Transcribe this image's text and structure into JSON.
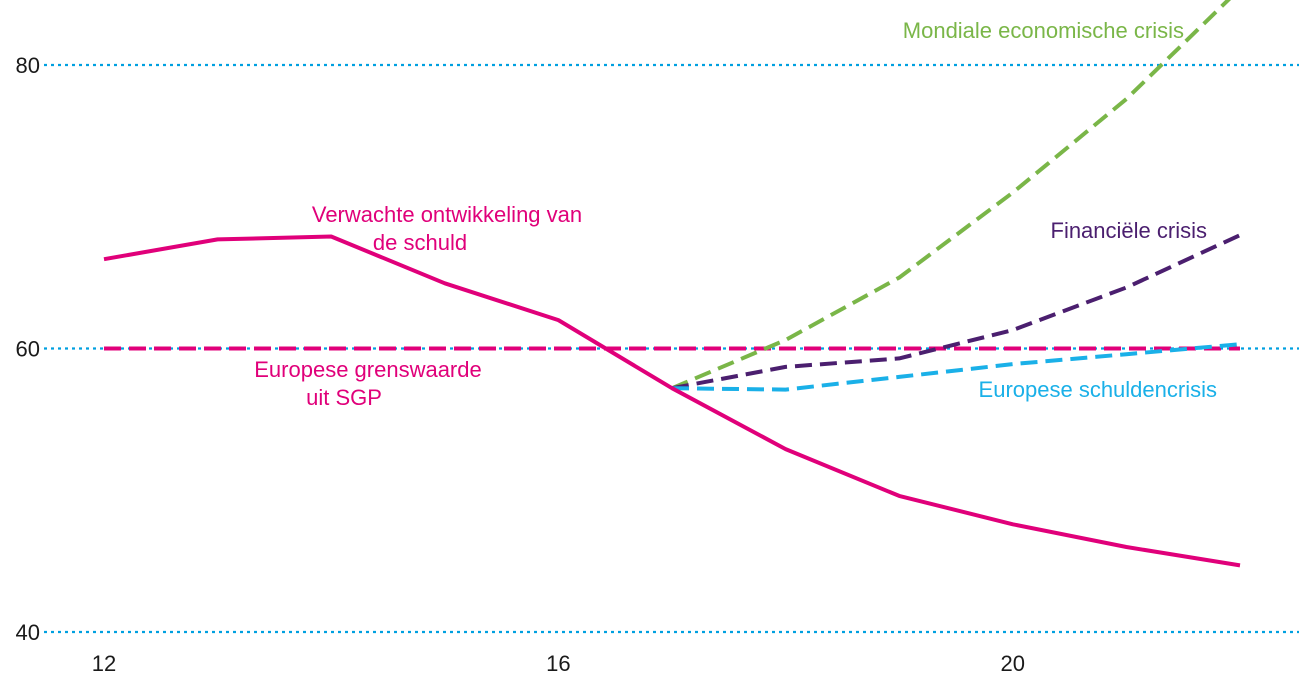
{
  "chart_data": {
    "type": "line",
    "title": "",
    "xlabel": "",
    "ylabel": "",
    "xlim": [
      12,
      22
    ],
    "ylim": [
      40,
      80
    ],
    "xticks": [
      12,
      16,
      20
    ],
    "yticks": [
      40,
      60,
      80
    ],
    "grid": "horizontal dotted at y ticks",
    "colors": {
      "grid": "#00a0e0",
      "pink": "#e0007a",
      "green": "#7ab648",
      "purple": "#4b1f6f",
      "blue": "#1ab0e8",
      "tick_text": "#1a1a1a"
    },
    "series": [
      {
        "name": "Verwachte ontwikkeling van de schuld",
        "style": "solid",
        "color": "#e0007a",
        "x": [
          12,
          13,
          14,
          15,
          16,
          17,
          18,
          19,
          20,
          21,
          22
        ],
        "y": [
          66.3,
          67.7,
          67.9,
          64.6,
          62.0,
          57.2,
          52.9,
          49.6,
          47.6,
          46.0,
          44.7
        ]
      },
      {
        "name": "Europese grenswaarde uit SGP",
        "style": "dashed",
        "color": "#e0007a",
        "x": [
          12,
          22
        ],
        "y": [
          60,
          60
        ]
      },
      {
        "name": "Mondiale economische crisis",
        "style": "dashed",
        "color": "#7ab648",
        "x": [
          17,
          18,
          19,
          20,
          21,
          22
        ],
        "y": [
          57.2,
          60.6,
          65.0,
          71.0,
          77.6,
          85.4
        ]
      },
      {
        "name": "Financiële crisis",
        "style": "dashed",
        "color": "#4b1f6f",
        "x": [
          17,
          18,
          19,
          20,
          21,
          22
        ],
        "y": [
          57.2,
          58.7,
          59.3,
          61.3,
          64.3,
          68.0
        ]
      },
      {
        "name": "Europese schuldencrisis",
        "style": "dashed",
        "color": "#1ab0e8",
        "x": [
          17,
          18,
          19,
          20,
          21,
          22
        ],
        "y": [
          57.2,
          57.1,
          58.0,
          58.9,
          59.6,
          60.3
        ]
      }
    ],
    "annotations": {
      "verwacht_line1": "Verwachte ontwikkeling van",
      "verwacht_line2": "de schuld",
      "grens_line1": "Europese grenswaarde",
      "grens_line2": "uit SGP",
      "mondiaal": "Mondiale economische crisis",
      "financieel": "Financiële crisis",
      "europees": "Europese schuldencrisis"
    }
  }
}
